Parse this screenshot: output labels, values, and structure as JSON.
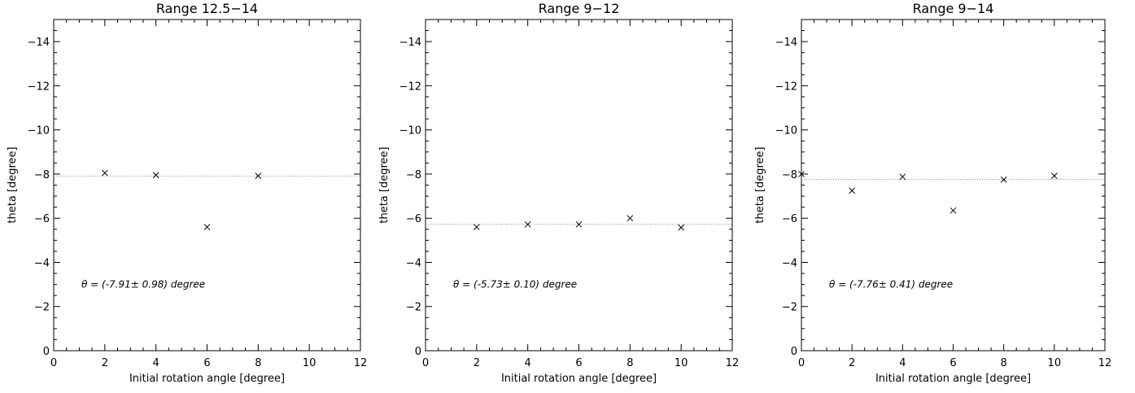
{
  "chart_data": [
    {
      "type": "scatter",
      "title": "Range 12.5−14",
      "xlabel": "Initial rotation angle [degree]",
      "ylabel": "theta [degree]",
      "xlim": [
        0,
        12
      ],
      "ylim": [
        0,
        -15
      ],
      "x_ticks": [
        "0",
        "2",
        "4",
        "6",
        "8",
        "10",
        "12"
      ],
      "y_ticks": [
        "0",
        "−2",
        "−4",
        "−6",
        "−8",
        "−10",
        "−12",
        "−14"
      ],
      "x_tick_values": [
        0,
        2,
        4,
        6,
        8,
        10,
        12
      ],
      "y_tick_values": [
        0,
        -2,
        -4,
        -6,
        -8,
        -10,
        -12,
        -14
      ],
      "x": [
        2,
        4,
        6,
        8
      ],
      "y": [
        -8.05,
        -7.95,
        -5.6,
        -7.92
      ],
      "fit_line": -7.91,
      "annotation": "θ = (-7.91± 0.98) degree",
      "annotation_y": -3.0,
      "grid": false,
      "colors": {
        "points": "#000000",
        "fit_line": "#4aa3df"
      }
    },
    {
      "type": "scatter",
      "title": "Range 9−12",
      "xlabel": "Initial rotation angle [degree]",
      "ylabel": "theta [degree]",
      "xlim": [
        0,
        12
      ],
      "ylim": [
        0,
        -15
      ],
      "x_ticks": [
        "0",
        "2",
        "4",
        "6",
        "8",
        "10",
        "12"
      ],
      "y_ticks": [
        "0",
        "−2",
        "−4",
        "−6",
        "−8",
        "−10",
        "−12",
        "−14"
      ],
      "x_tick_values": [
        0,
        2,
        4,
        6,
        8,
        10,
        12
      ],
      "y_tick_values": [
        0,
        -2,
        -4,
        -6,
        -8,
        -10,
        -12,
        -14
      ],
      "x": [
        2,
        4,
        6,
        8,
        10
      ],
      "y": [
        -5.6,
        -5.72,
        -5.72,
        -6.0,
        -5.58
      ],
      "fit_line": -5.73,
      "annotation": "θ = (-5.73± 0.10) degree",
      "annotation_y": -3.0,
      "grid": false,
      "colors": {
        "points": "#000000",
        "fit_line": "#4aa3df"
      }
    },
    {
      "type": "scatter",
      "title": "Range 9−14",
      "xlabel": "Initial rotation angle [degree]",
      "ylabel": "theta [degree]",
      "xlim": [
        0,
        12
      ],
      "ylim": [
        0,
        -15
      ],
      "x_ticks": [
        "0",
        "2",
        "4",
        "6",
        "8",
        "10",
        "12"
      ],
      "y_ticks": [
        "0",
        "−2",
        "−4",
        "−6",
        "−8",
        "−10",
        "−12",
        "−14"
      ],
      "x_tick_values": [
        0,
        2,
        4,
        6,
        8,
        10,
        12
      ],
      "y_tick_values": [
        0,
        -2,
        -4,
        -6,
        -8,
        -10,
        -12,
        -14
      ],
      "x": [
        0,
        2,
        4,
        6,
        8,
        10
      ],
      "y": [
        -8.0,
        -7.25,
        -7.88,
        -6.35,
        -7.75,
        -7.92
      ],
      "fit_line": -7.76,
      "annotation": "θ = (-7.76± 0.41) degree",
      "annotation_y": -3.0,
      "grid": false,
      "colors": {
        "points": "#000000",
        "fit_line": "#4aa3df"
      }
    }
  ]
}
